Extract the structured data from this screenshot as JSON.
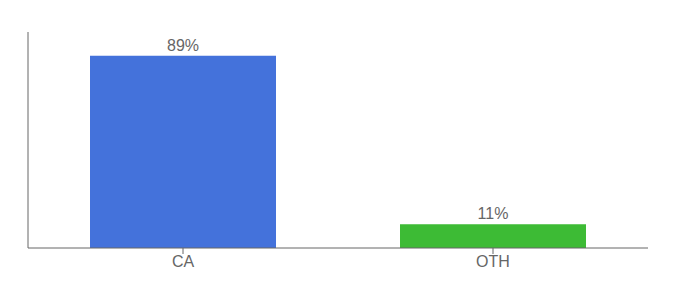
{
  "chart_data": {
    "type": "bar",
    "categories": [
      "CA",
      "OTH"
    ],
    "values": [
      89,
      11
    ],
    "value_labels": [
      "89%",
      "11%"
    ],
    "colors": [
      "#4472db",
      "#3dbb35"
    ],
    "ylim": [
      0,
      100
    ],
    "data_labels": true,
    "tick_labels": "x",
    "grid": false
  }
}
